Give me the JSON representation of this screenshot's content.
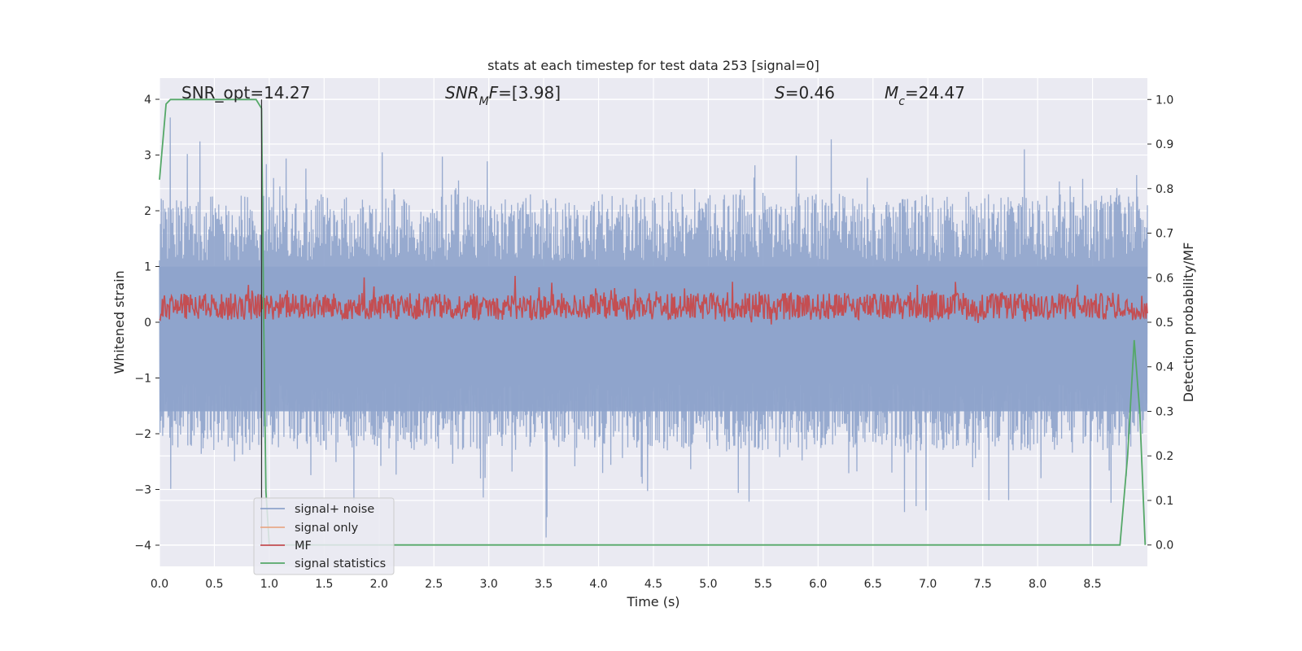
{
  "chart_data": {
    "type": "line",
    "title": "stats at each timestep for test data 253 [signal=0]",
    "xlabel": "Time (s)",
    "ylabel": "Whitened strain",
    "y2label": "Detection probability/MF",
    "xlim": [
      0.0,
      9.0
    ],
    "ylim": [
      -4.38,
      4.38
    ],
    "y2lim": [
      -0.048,
      1.048
    ],
    "x_ticks": [
      "0.0",
      "0.5",
      "1.0",
      "1.5",
      "2.0",
      "2.5",
      "3.0",
      "3.5",
      "4.0",
      "4.5",
      "5.0",
      "5.5",
      "6.0",
      "6.5",
      "7.0",
      "7.5",
      "8.0",
      "8.5"
    ],
    "y_ticks": [
      "−4",
      "−3",
      "−2",
      "−1",
      "0",
      "1",
      "2",
      "3",
      "4"
    ],
    "y2_ticks": [
      "0.0",
      "0.1",
      "0.2",
      "0.3",
      "0.4",
      "0.5",
      "0.6",
      "0.7",
      "0.8",
      "0.9",
      "1.0"
    ],
    "grid": true,
    "legend_position": "lower-left",
    "annotations": [
      {
        "name": "snr-opt",
        "parts": [
          {
            "t": "SNR_opt=14.27"
          }
        ]
      },
      {
        "name": "snr-mf",
        "parts": [
          {
            "t": "SNR",
            "i": true
          },
          {
            "t": "M",
            "i": true,
            "sub": true
          },
          {
            "t": "F",
            "i": true
          },
          {
            "t": "=[3.98]"
          }
        ]
      },
      {
        "name": "s-value",
        "parts": [
          {
            "t": "S",
            "i": true
          },
          {
            "t": "=0.46"
          }
        ]
      },
      {
        "name": "mc-value",
        "parts": [
          {
            "t": "M",
            "i": true
          },
          {
            "t": "c",
            "i": true,
            "sub": true
          },
          {
            "t": "=24.47"
          }
        ]
      }
    ],
    "series": [
      {
        "name": "signal+ noise",
        "color": "#8ea3cb",
        "axis": "left",
        "style": "dense noisy strain around 0, envelope roughly ±2.5 with spikes to about ±4"
      },
      {
        "name": "signal only",
        "color": "#e8a988",
        "axis": "left",
        "style": "flat"
      },
      {
        "name": "MF",
        "color": "#c44e52",
        "axis": "right",
        "style": "noisy around 0.53, range about 0.5 to 0.63"
      },
      {
        "name": "signal statistics",
        "color": "#55a868",
        "axis": "right",
        "x": [
          0.0,
          0.06,
          0.1,
          0.2,
          0.4,
          0.6,
          0.8,
          0.88,
          0.93,
          0.95,
          0.97,
          1.0,
          1.5,
          2.0,
          3.0,
          4.0,
          5.0,
          6.0,
          7.0,
          8.0,
          8.6,
          8.75,
          8.82,
          8.88,
          8.93,
          8.98
        ],
        "values": [
          0.82,
          0.99,
          1.0,
          1.0,
          1.0,
          1.0,
          1.0,
          1.0,
          0.98,
          0.5,
          0.12,
          0.0,
          0.0,
          0.0,
          0.0,
          0.0,
          0.0,
          0.0,
          0.0,
          0.0,
          0.0,
          0.0,
          0.2,
          0.46,
          0.3,
          0.0
        ]
      }
    ]
  }
}
